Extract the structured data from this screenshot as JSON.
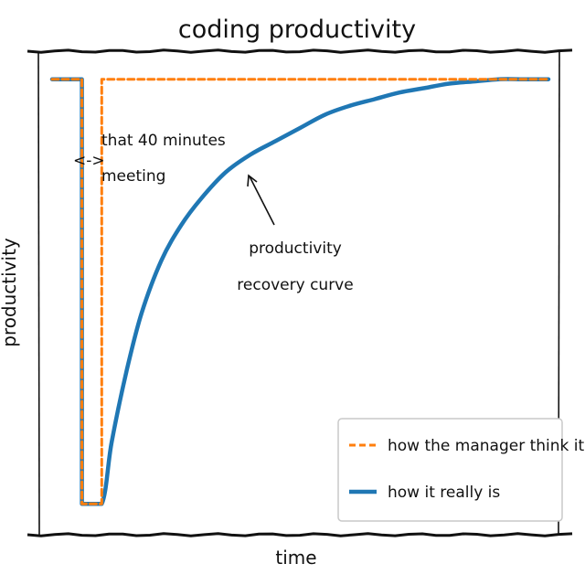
{
  "chart_data": {
    "type": "line",
    "title": "coding productivity",
    "xlabel": "time",
    "ylabel": "productivity",
    "xticks": [],
    "yticks": [],
    "xlim": [
      0,
      100
    ],
    "ylim": [
      0,
      100
    ],
    "grid": false,
    "legend_position": "lower-right",
    "series": [
      {
        "name": "how the manager think it is",
        "style": "dashed",
        "color": "#ff7f0e",
        "points": [
          [
            0,
            98
          ],
          [
            6,
            98
          ],
          [
            6,
            2
          ],
          [
            10,
            2
          ],
          [
            10,
            98
          ],
          [
            100,
            98
          ]
        ]
      },
      {
        "name": "how it really is",
        "style": "solid",
        "color": "#1f77b4",
        "points": [
          [
            0,
            98
          ],
          [
            6,
            98
          ],
          [
            6,
            2
          ],
          [
            10,
            2
          ],
          [
            12,
            16
          ],
          [
            15,
            32
          ],
          [
            18,
            45
          ],
          [
            22,
            57
          ],
          [
            26,
            65
          ],
          [
            30,
            71
          ],
          [
            35,
            77
          ],
          [
            40,
            81
          ],
          [
            45,
            84
          ],
          [
            50,
            87
          ],
          [
            55,
            90
          ],
          [
            60,
            92
          ],
          [
            65,
            93.5
          ],
          [
            70,
            95
          ],
          [
            75,
            96
          ],
          [
            80,
            97
          ],
          [
            85,
            97.5
          ],
          [
            90,
            98
          ],
          [
            95,
            98
          ],
          [
            100,
            98
          ]
        ]
      }
    ],
    "annotations": [
      {
        "lines": [
          "that 40 minutes",
          "meeting"
        ],
        "marker": "<->"
      },
      {
        "lines": [
          "productivity",
          "recovery curve"
        ],
        "arrow_to": [
          39,
          74
        ]
      }
    ]
  }
}
